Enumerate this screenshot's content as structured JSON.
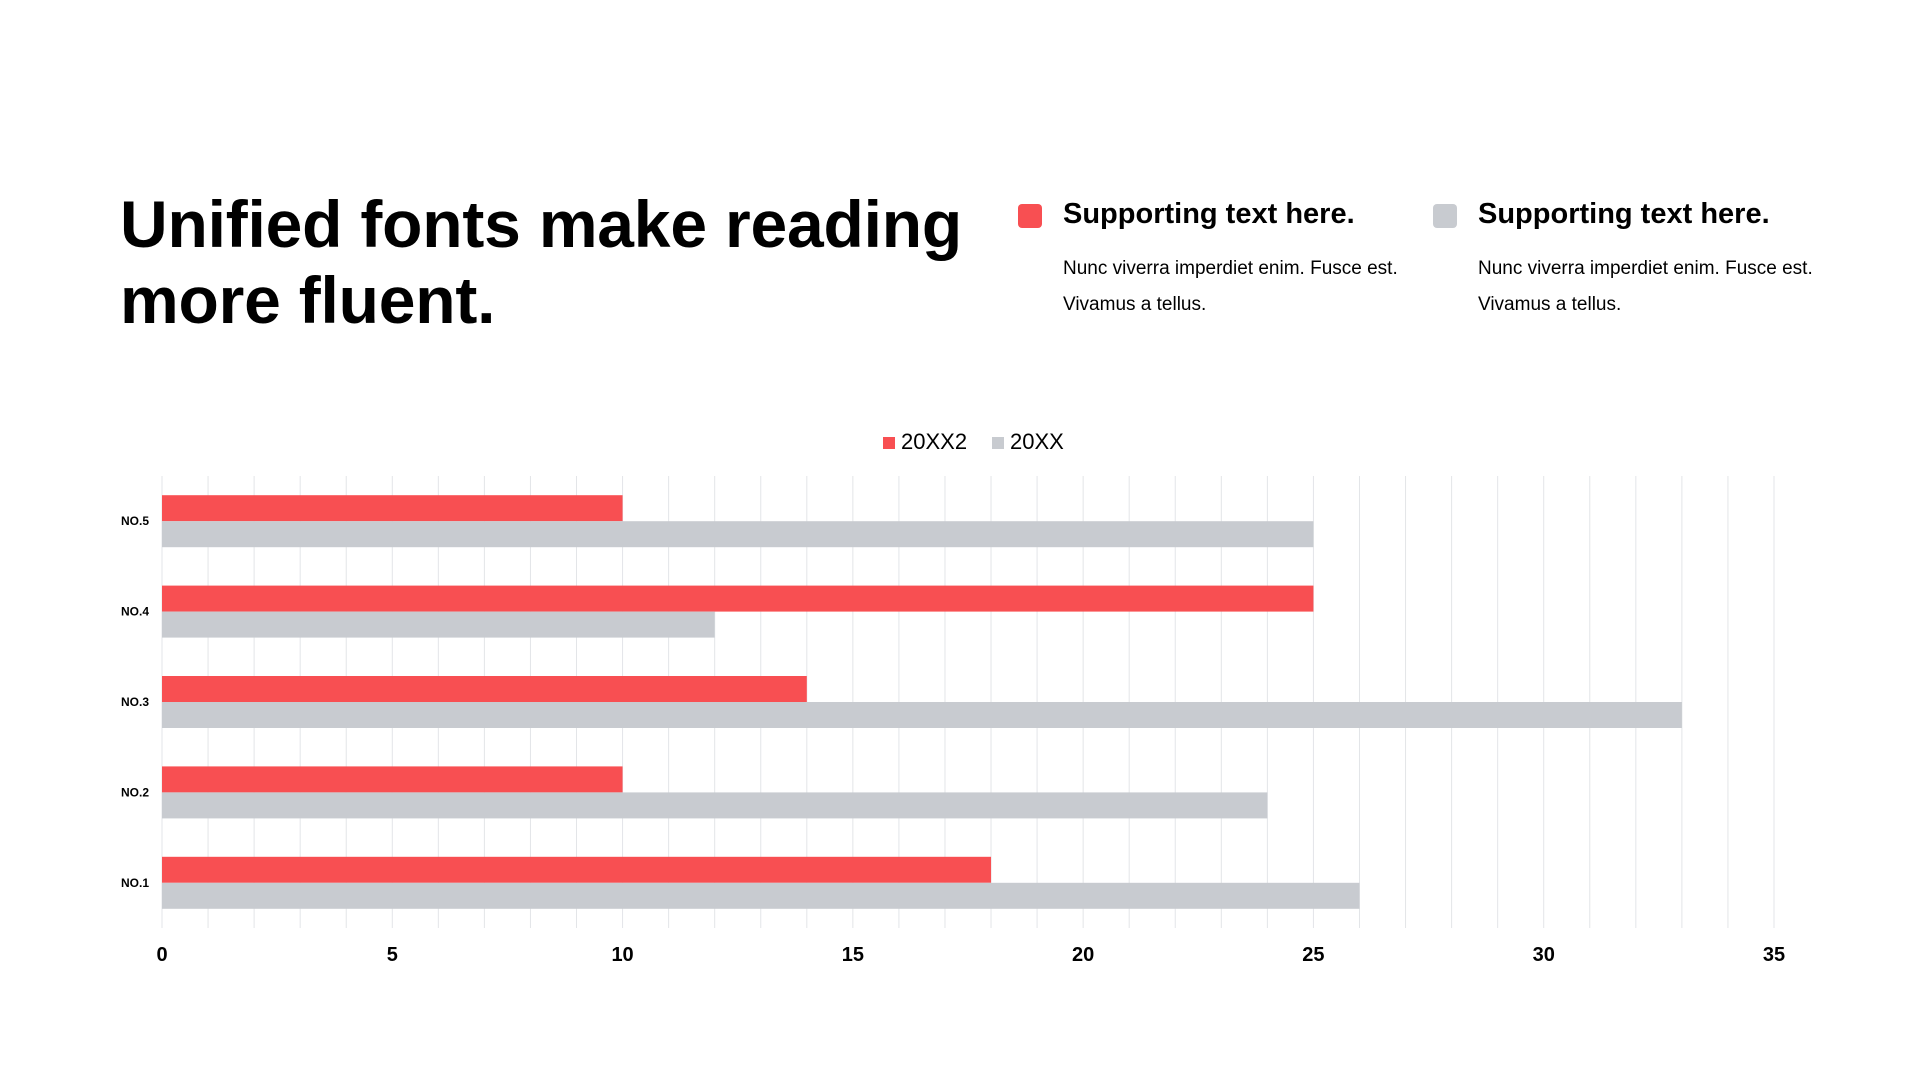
{
  "slide": {
    "title": "Unified fonts make reading more fluent."
  },
  "supports": [
    {
      "heading": "Supporting text here.",
      "body": "Nunc viverra imperdiet enim. Fusce est.\nVivamus  a tellus.",
      "color": "#F84F52"
    },
    {
      "heading": "Supporting text here.",
      "body": "Nunc viverra imperdiet enim. Fusce est.\nVivamus  a tellus.",
      "color": "#C8CBD0"
    }
  ],
  "chart_data": {
    "type": "bar",
    "orientation": "horizontal",
    "categories": [
      "NO.1",
      "NO.2",
      "NO.3",
      "NO.4",
      "NO.5"
    ],
    "series": [
      {
        "name": "20XX2",
        "values": [
          18,
          10,
          14,
          25,
          10
        ],
        "color": "#F84F52"
      },
      {
        "name": "20XX",
        "values": [
          26,
          24,
          33,
          12,
          25
        ],
        "color": "#C8CBD0"
      }
    ],
    "xlim": [
      0,
      35
    ],
    "xticks": [
      0,
      5,
      10,
      15,
      20,
      25,
      30,
      35
    ],
    "grid": true,
    "legend": "top-center",
    "title": "",
    "xlabel": "",
    "ylabel": ""
  }
}
